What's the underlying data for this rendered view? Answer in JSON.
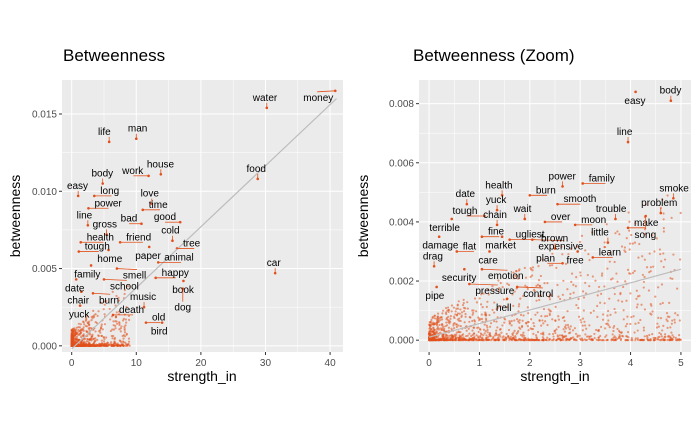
{
  "colors": {
    "points": "#e2501b",
    "panel_bg": "#ebebeb",
    "grid": "#ffffff",
    "trend": "#bdbdbd",
    "label_line": "#e2501b"
  },
  "chart_data": [
    {
      "type": "scatter",
      "title": "Betweenness",
      "xlabel": "strength_in",
      "ylabel": "betweenness",
      "xlim": [
        -1.5,
        42
      ],
      "ylim": [
        -0.0004,
        0.0172
      ],
      "xticks": [
        0,
        10,
        20,
        30,
        40
      ],
      "xtick_labels": [
        "0",
        "10",
        "20",
        "30",
        "40"
      ],
      "yticks": [
        0,
        0.005,
        0.01,
        0.015
      ],
      "ytick_labels": [
        "0.000",
        "0.005",
        "0.010",
        "0.015"
      ],
      "grid": true,
      "trend_line": {
        "x": [
          0,
          41
        ],
        "y": [
          -0.0002,
          0.016
        ]
      },
      "points": [
        {
          "label": "money",
          "x": 40.8,
          "y": 0.0165
        },
        {
          "label": "water",
          "x": 30.2,
          "y": 0.0154
        },
        {
          "label": "man",
          "x": 10.0,
          "y": 0.0134
        },
        {
          "label": "life",
          "x": 5.8,
          "y": 0.0132
        },
        {
          "label": "house",
          "x": 13.8,
          "y": 0.0111
        },
        {
          "label": "food",
          "x": 28.8,
          "y": 0.0108
        },
        {
          "label": "work",
          "x": 11.9,
          "y": 0.011
        },
        {
          "label": "body",
          "x": 4.8,
          "y": 0.0105
        },
        {
          "label": "easy",
          "x": 1.0,
          "y": 0.0097
        },
        {
          "label": "long",
          "x": 3.5,
          "y": 0.0097
        },
        {
          "label": "love",
          "x": 12.4,
          "y": 0.0092
        },
        {
          "label": "power",
          "x": 2.6,
          "y": 0.0089
        },
        {
          "label": "time",
          "x": 11.0,
          "y": 0.0088
        },
        {
          "label": "good",
          "x": 16.8,
          "y": 0.008
        },
        {
          "label": "line",
          "x": 2.5,
          "y": 0.0078
        },
        {
          "label": "bad",
          "x": 10.8,
          "y": 0.0079
        },
        {
          "label": "gross",
          "x": 5.4,
          "y": 0.0072
        },
        {
          "label": "health",
          "x": 1.4,
          "y": 0.0067
        },
        {
          "label": "friend",
          "x": 7.5,
          "y": 0.0067
        },
        {
          "label": "cold",
          "x": 15.6,
          "y": 0.0068
        },
        {
          "label": "tough",
          "x": 1.1,
          "y": 0.0061
        },
        {
          "label": "home",
          "x": 5.7,
          "y": 0.0062
        },
        {
          "label": "paper",
          "x": 12.0,
          "y": 0.0064
        },
        {
          "label": "tree",
          "x": 16.3,
          "y": 0.0063
        },
        {
          "label": "car",
          "x": 31.5,
          "y": 0.0047
        },
        {
          "label": "family",
          "x": 3.0,
          "y": 0.0052
        },
        {
          "label": "smell",
          "x": 7.0,
          "y": 0.005
        },
        {
          "label": "animal",
          "x": 13.4,
          "y": 0.0054
        },
        {
          "label": "date",
          "x": 0.7,
          "y": 0.0043
        },
        {
          "label": "school",
          "x": 5.0,
          "y": 0.0043
        },
        {
          "label": "happy",
          "x": 13.0,
          "y": 0.0044
        },
        {
          "label": "book",
          "x": 17.3,
          "y": 0.0042
        },
        {
          "label": "chair",
          "x": 1.5,
          "y": 0.0035
        },
        {
          "label": "burn",
          "x": 3.3,
          "y": 0.0034
        },
        {
          "label": "dog",
          "x": 17.2,
          "y": 0.0037
        },
        {
          "label": "yuck",
          "x": 1.3,
          "y": 0.0026
        },
        {
          "label": "music",
          "x": 11.2,
          "y": 0.0025
        },
        {
          "label": "death",
          "x": 6.4,
          "y": 0.002
        },
        {
          "label": "old",
          "x": 11.5,
          "y": 0.0015
        },
        {
          "label": "bird",
          "x": 14.0,
          "y": 0.0015
        }
      ]
    },
    {
      "type": "scatter",
      "title": "Betweenness (Zoom)",
      "xlabel": "strength_in",
      "ylabel": "betweenness",
      "xlim": [
        -0.2,
        5.2
      ],
      "ylim": [
        -0.0004,
        0.0088
      ],
      "xticks": [
        0,
        1,
        2,
        3,
        4,
        5
      ],
      "xtick_labels": [
        "0",
        "1",
        "2",
        "3",
        "4",
        "5"
      ],
      "yticks": [
        0,
        0.002,
        0.004,
        0.006,
        0.008
      ],
      "ytick_labels": [
        "0.000",
        "0.002",
        "0.004",
        "0.006",
        "0.008"
      ],
      "grid": true,
      "trend_line": {
        "x": [
          0,
          5
        ],
        "y": [
          0.0001,
          0.0024
        ]
      },
      "points": [
        {
          "label": "easy",
          "x": 4.1,
          "y": 0.0084
        },
        {
          "label": "body",
          "x": 4.8,
          "y": 0.0081
        },
        {
          "label": "line",
          "x": 3.95,
          "y": 0.0067
        },
        {
          "label": "power",
          "x": 2.65,
          "y": 0.0052
        },
        {
          "label": "smoke",
          "x": 4.85,
          "y": 0.0048
        },
        {
          "label": "health",
          "x": 1.45,
          "y": 0.0049
        },
        {
          "label": "burn",
          "x": 2.0,
          "y": 0.0049
        },
        {
          "label": "family",
          "x": 3.05,
          "y": 0.0053
        },
        {
          "label": "smooth",
          "x": 2.55,
          "y": 0.0046
        },
        {
          "label": "date",
          "x": 0.75,
          "y": 0.0046
        },
        {
          "label": "yuck",
          "x": 1.35,
          "y": 0.0044
        },
        {
          "label": "tough",
          "x": 1.1,
          "y": 0.0042
        },
        {
          "label": "trouble",
          "x": 3.7,
          "y": 0.0041
        },
        {
          "label": "problem",
          "x": 4.6,
          "y": 0.0043
        },
        {
          "label": "wait",
          "x": 1.9,
          "y": 0.0041
        },
        {
          "label": "over",
          "x": 2.3,
          "y": 0.004
        },
        {
          "label": "terrible",
          "x": 0.45,
          "y": 0.0041
        },
        {
          "label": "chain",
          "x": 1.35,
          "y": 0.0039
        },
        {
          "label": "moon",
          "x": 2.9,
          "y": 0.0039
        },
        {
          "label": "make",
          "x": 3.95,
          "y": 0.0038
        },
        {
          "label": "song",
          "x": 4.3,
          "y": 0.0042
        },
        {
          "label": "damage",
          "x": 0.2,
          "y": 0.0035
        },
        {
          "label": "fine",
          "x": 1.05,
          "y": 0.0035
        },
        {
          "label": "market",
          "x": 1.45,
          "y": 0.0035
        },
        {
          "label": "ugliest",
          "x": 1.6,
          "y": 0.0034
        },
        {
          "label": "expensive",
          "x": 2.05,
          "y": 0.0034
        },
        {
          "label": "little",
          "x": 3.55,
          "y": 0.0033
        },
        {
          "label": "free",
          "x": 2.95,
          "y": 0.003
        },
        {
          "label": "flat",
          "x": 0.55,
          "y": 0.003
        },
        {
          "label": "care",
          "x": 1.2,
          "y": 0.003
        },
        {
          "label": "brown",
          "x": 2.5,
          "y": 0.0031
        },
        {
          "label": "learn",
          "x": 3.25,
          "y": 0.0028
        },
        {
          "label": "drag",
          "x": 0.1,
          "y": 0.0025
        },
        {
          "label": "security",
          "x": 0.7,
          "y": 0.0024
        },
        {
          "label": "emotion",
          "x": 1.05,
          "y": 0.0024
        },
        {
          "label": "plan",
          "x": 2.65,
          "y": 0.0026
        },
        {
          "label": "pipe",
          "x": 0.15,
          "y": 0.0018
        },
        {
          "label": "pressure",
          "x": 0.8,
          "y": 0.0019
        },
        {
          "label": "control",
          "x": 1.75,
          "y": 0.0018
        },
        {
          "label": "hell",
          "x": 1.55,
          "y": 0.0014
        }
      ]
    }
  ]
}
